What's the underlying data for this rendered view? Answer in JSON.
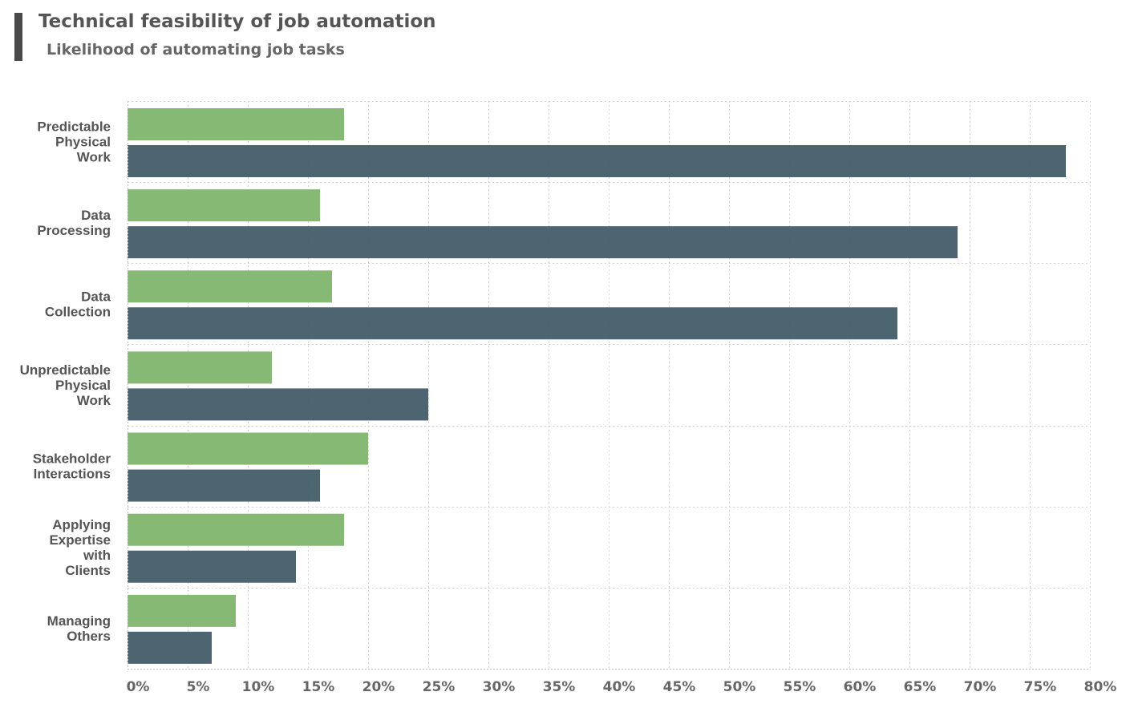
{
  "title": "Technical feasibility of job automation",
  "subtitle": "Likelihood of automating job tasks",
  "colors": {
    "series_green": "#7fb56d",
    "series_dark": "#3f5866",
    "title_accent": "#4a4a4a"
  },
  "chart_data": {
    "type": "bar",
    "orientation": "horizontal",
    "title": "Technical feasibility of job automation",
    "subtitle": "Likelihood of automating job tasks",
    "categories": [
      "Predictable Physical Work",
      "Data Processing",
      "Data Collection",
      "Unpredictable Physical Work",
      "Stakeholder Interactions",
      "Applying Expertise with Clients",
      "Managing Others"
    ],
    "category_label_lines": [
      [
        "Predictable",
        "Physical",
        "Work"
      ],
      [
        "Data",
        "Processing"
      ],
      [
        "Data",
        "Collection"
      ],
      [
        "Unpredictable",
        "Physical",
        "Work"
      ],
      [
        "Stakeholder",
        "Interactions"
      ],
      [
        "Applying",
        "Expertise",
        "with",
        "Clients"
      ],
      [
        "Managing",
        "Others"
      ]
    ],
    "series": [
      {
        "name": "green",
        "color": "#7fb56d",
        "values": [
          18,
          16,
          17,
          12,
          20,
          18,
          9
        ]
      },
      {
        "name": "dark",
        "color": "#3f5866",
        "values": [
          78,
          69,
          64,
          25,
          16,
          14,
          7
        ]
      }
    ],
    "xlim": [
      0,
      80
    ],
    "xticks": [
      0,
      5,
      10,
      15,
      20,
      25,
      30,
      35,
      40,
      45,
      50,
      55,
      60,
      65,
      70,
      75,
      80
    ],
    "xtick_labels": [
      "0%",
      "5%",
      "10%",
      "15%",
      "20%",
      "25%",
      "30%",
      "35%",
      "40%",
      "45%",
      "50%",
      "55%",
      "60%",
      "65%",
      "70%",
      "75%",
      "80%"
    ],
    "xlabel": "",
    "ylabel": "",
    "grid": true,
    "legend": false
  }
}
